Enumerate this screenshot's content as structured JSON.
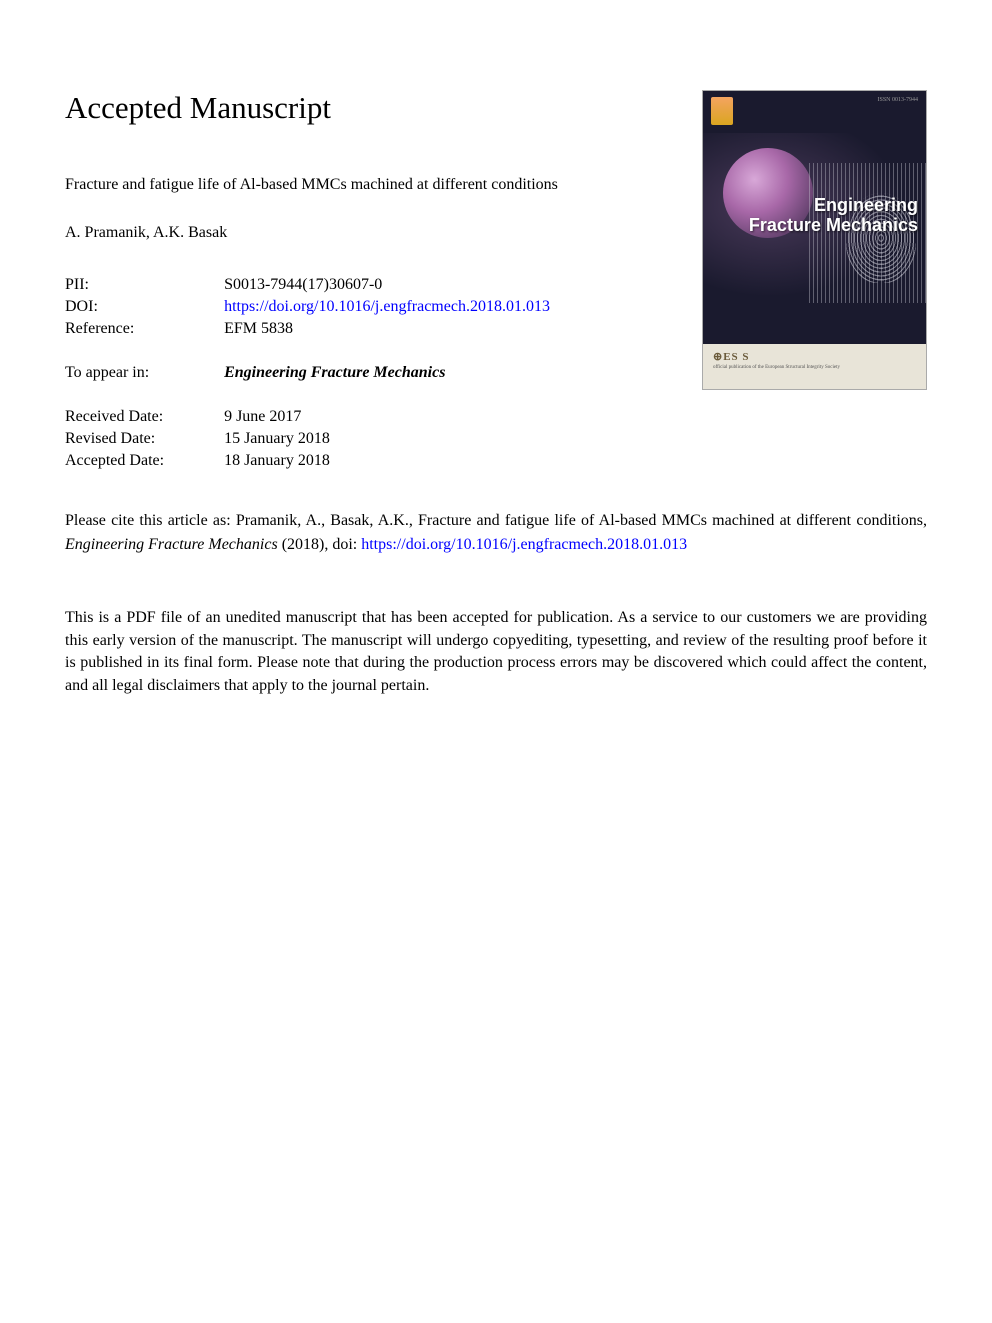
{
  "heading": "Accepted Manuscript",
  "paper_title": "Fracture and fatigue life of Al-based MMCs machined at different conditions",
  "authors": "A. Pramanik, A.K. Basak",
  "meta": {
    "pii_label": "PII:",
    "pii_value": "S0013-7944(17)30607-0",
    "doi_label": "DOI:",
    "doi_value": "https://doi.org/10.1016/j.engfracmech.2018.01.013",
    "reference_label": "Reference:",
    "reference_value": "EFM 5838",
    "to_appear_label": "To appear in:",
    "to_appear_value": "Engineering Fracture Mechanics",
    "received_label": "Received Date:",
    "received_value": "9 June 2017",
    "revised_label": "Revised Date:",
    "revised_value": "15 January 2018",
    "accepted_label": "Accepted Date:",
    "accepted_value": "18 January 2018"
  },
  "cover": {
    "journal_line1": "Engineering",
    "journal_line2": "Fracture Mechanics",
    "ess_label": "⊕ES S",
    "issn": "ISSN 0013-7944",
    "tagline": "official publication of the European Structural Integrity Society",
    "colors": {
      "background": "#1a1a2e",
      "bottom_band": "#e8e4d8",
      "title_text": "#ffffff",
      "ess_text": "#6a5a3a"
    }
  },
  "citation": {
    "prefix": "Please cite this article as: Pramanik, A., Basak, A.K., Fracture and fatigue life of Al-based MMCs machined at different conditions, ",
    "journal": "Engineering Fracture Mechanics",
    "year_doi_prefix": " (2018), doi: ",
    "doi_link": "https://doi.org/10.1016/j.engfracmech.2018.01.013"
  },
  "disclaimer": "This is a PDF file of an unedited manuscript that has been accepted for publication. As a service to our customers we are providing this early version of the manuscript. The manuscript will undergo copyediting, typesetting, and review of the resulting proof before it is published in its final form. Please note that during the production process errors may be discovered which could affect the content, and all legal disclaimers that apply to the journal pertain.",
  "colors": {
    "link": "#0000ff",
    "text": "#000000",
    "background": "#ffffff"
  },
  "typography": {
    "heading_fontsize": 31,
    "body_fontsize": 16,
    "font_family": "Georgia, Times New Roman, serif"
  }
}
